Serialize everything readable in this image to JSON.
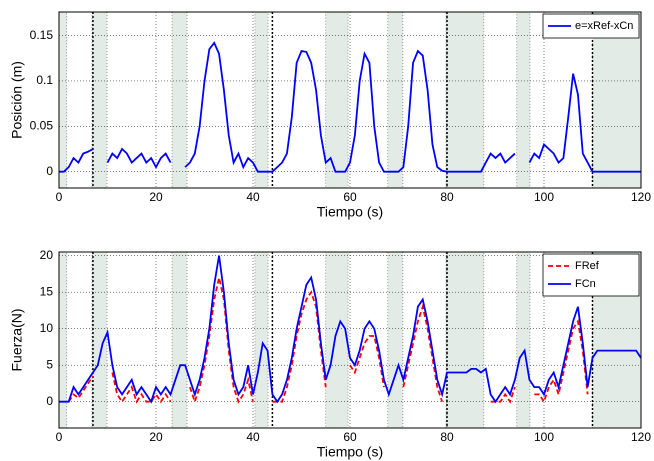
{
  "chart_data": [
    {
      "type": "line",
      "x_label": "Tiempo (s)",
      "y_label": "Posición (m)",
      "xlim": [
        0,
        120
      ],
      "xticks": [
        0,
        20,
        40,
        60,
        80,
        100,
        120
      ],
      "ylim": [
        -0.018,
        0.176
      ],
      "yticks": [
        0,
        0.05,
        0.1,
        0.15
      ],
      "grid": true,
      "legend": "upper right",
      "shaded_regions": [
        [
          0,
          1.6
        ],
        [
          6.8,
          9.9
        ],
        [
          23.3,
          26.4
        ],
        [
          40.4,
          43.1
        ],
        [
          55,
          59.6
        ],
        [
          67.8,
          70.9
        ],
        [
          79.8,
          87.6
        ],
        [
          94.4,
          97.1
        ],
        [
          110,
          120
        ]
      ],
      "vlines": [
        7,
        44,
        80,
        110
      ],
      "x": [
        0,
        1,
        2,
        3,
        4,
        5,
        6,
        7,
        8,
        9,
        10,
        11,
        12,
        13,
        14,
        15,
        16,
        17,
        18,
        19,
        20,
        21,
        22,
        23,
        24,
        25,
        26,
        27,
        28,
        29,
        30,
        31,
        32,
        33,
        34,
        35,
        36,
        37,
        38,
        39,
        40,
        41,
        42,
        43,
        44,
        45,
        46,
        47,
        48,
        49,
        50,
        51,
        52,
        53,
        54,
        55,
        56,
        57,
        58,
        59,
        60,
        61,
        62,
        63,
        64,
        65,
        66,
        67,
        68,
        69,
        70,
        71,
        72,
        73,
        74,
        75,
        76,
        77,
        78,
        79,
        80,
        81,
        82,
        83,
        84,
        85,
        86,
        87,
        88,
        89,
        90,
        91,
        92,
        93,
        94,
        95,
        96,
        97,
        98,
        99,
        100,
        101,
        102,
        103,
        104,
        105,
        106,
        107,
        108,
        109,
        110,
        111,
        112,
        113,
        114,
        115,
        116,
        117,
        118,
        119,
        120
      ],
      "series": [
        {
          "name": "e=xRef-xCn",
          "color": "#0000ff",
          "dash": false,
          "values": [
            0,
            0,
            0.005,
            0.015,
            0.01,
            0.02,
            0.022,
            0.025,
            null,
            null,
            0.01,
            0.02,
            0.015,
            0.025,
            0.02,
            0.01,
            0.015,
            0.02,
            0.01,
            0.015,
            0.005,
            0.015,
            0.02,
            0.01,
            null,
            null,
            0.005,
            0.01,
            0.02,
            0.05,
            0.1,
            0.135,
            0.142,
            0.13,
            0.09,
            0.04,
            0.01,
            0.02,
            0.005,
            0.015,
            0.01,
            0,
            0,
            0,
            0,
            0.005,
            0.01,
            0.02,
            0.06,
            0.12,
            0.133,
            0.132,
            0.12,
            0.09,
            0.04,
            0.01,
            0.015,
            0,
            0,
            0,
            0.01,
            0.04,
            0.1,
            0.13,
            0.12,
            0.05,
            0.01,
            0,
            0,
            0,
            0,
            0.005,
            0.05,
            0.12,
            0.133,
            0.128,
            0.09,
            0.03,
            0.005,
            0.001,
            0,
            0,
            0,
            0,
            0,
            0,
            0,
            0,
            0.01,
            0.02,
            0.015,
            0.02,
            0.01,
            0.015,
            0.02,
            null,
            null,
            0.01,
            0.02,
            0.015,
            0.03,
            0.025,
            0.02,
            0.01,
            0.015,
            0.06,
            0.108,
            0.085,
            0.02,
            0.01,
            0,
            0,
            0,
            0,
            0,
            0,
            0,
            0,
            0,
            0,
            0
          ]
        }
      ]
    },
    {
      "type": "line",
      "x_label": "Tiempo (s)",
      "y_label": "Fuerza(N)",
      "xlim": [
        0,
        120
      ],
      "xticks": [
        0,
        20,
        40,
        60,
        80,
        100,
        120
      ],
      "ylim": [
        -3.6,
        20.5
      ],
      "yticks": [
        0,
        5,
        10,
        15,
        20
      ],
      "grid": true,
      "legend": "upper right",
      "shaded_regions": [
        [
          0,
          1.6
        ],
        [
          6.8,
          9.9
        ],
        [
          23.3,
          26.4
        ],
        [
          40.4,
          43.1
        ],
        [
          55,
          59.6
        ],
        [
          67.8,
          70.9
        ],
        [
          79.8,
          87.6
        ],
        [
          94.4,
          97.1
        ],
        [
          110,
          120
        ]
      ],
      "vlines": [
        7,
        44,
        80,
        110
      ],
      "x": [
        0,
        1,
        2,
        3,
        4,
        5,
        6,
        7,
        8,
        9,
        10,
        11,
        12,
        13,
        14,
        15,
        16,
        17,
        18,
        19,
        20,
        21,
        22,
        23,
        24,
        25,
        26,
        27,
        28,
        29,
        30,
        31,
        32,
        33,
        34,
        35,
        36,
        37,
        38,
        39,
        40,
        41,
        42,
        43,
        44,
        45,
        46,
        47,
        48,
        49,
        50,
        51,
        52,
        53,
        54,
        55,
        56,
        57,
        58,
        59,
        60,
        61,
        62,
        63,
        64,
        65,
        66,
        67,
        68,
        69,
        70,
        71,
        72,
        73,
        74,
        75,
        76,
        77,
        78,
        79,
        80,
        81,
        82,
        83,
        84,
        85,
        86,
        87,
        88,
        89,
        90,
        91,
        92,
        93,
        94,
        95,
        96,
        97,
        98,
        99,
        100,
        101,
        102,
        103,
        104,
        105,
        106,
        107,
        108,
        109,
        110,
        111,
        112,
        113,
        114,
        115,
        116,
        117,
        118,
        119,
        120
      ],
      "series": [
        {
          "name": "FRef",
          "color": "#ff0000",
          "dash": true,
          "values": [
            null,
            null,
            0,
            1,
            0.5,
            1.5,
            2.5,
            3.5,
            null,
            null,
            null,
            4,
            1,
            0,
            1,
            2,
            0,
            1,
            0,
            0,
            1,
            0,
            1,
            0,
            null,
            null,
            null,
            2,
            0,
            2,
            5,
            9,
            14,
            17,
            14,
            7,
            2,
            0,
            1,
            3,
            0,
            null,
            null,
            null,
            0,
            0,
            0,
            2,
            5,
            9,
            12,
            14,
            15,
            13,
            7,
            2,
            null,
            null,
            null,
            null,
            5,
            4,
            6,
            8,
            9,
            9,
            6,
            2,
            null,
            null,
            null,
            2,
            5,
            8,
            11,
            13,
            10,
            6,
            2,
            0,
            null,
            null,
            null,
            null,
            null,
            null,
            null,
            null,
            null,
            0,
            0,
            0,
            1,
            0,
            2,
            null,
            null,
            null,
            1,
            1,
            0,
            2,
            3,
            1,
            4,
            7,
            10,
            11,
            7,
            1,
            null,
            null,
            null,
            null,
            null,
            null,
            null,
            null,
            null,
            null,
            null
          ]
        },
        {
          "name": "FCn",
          "color": "#0000ff",
          "dash": false,
          "values": [
            0,
            0,
            0,
            2,
            1,
            2,
            3,
            4,
            5,
            8,
            9.5,
            5,
            2,
            1,
            2,
            3,
            1,
            2,
            1,
            0,
            2,
            1,
            2,
            1,
            3,
            5,
            5,
            3,
            1,
            3,
            6,
            10,
            16,
            20,
            15,
            8,
            3,
            1,
            2,
            5,
            1,
            4,
            8,
            7,
            1,
            0,
            1,
            3,
            6,
            10,
            13,
            16,
            17,
            14,
            8,
            3,
            5,
            9,
            11,
            10,
            6,
            5,
            7,
            10,
            11,
            10,
            7,
            3,
            1,
            3,
            5,
            3,
            6,
            9,
            13,
            14,
            11,
            7,
            3,
            1,
            4,
            4,
            4,
            4,
            4,
            4.5,
            4.5,
            4,
            4.5,
            1,
            0,
            1,
            2,
            1,
            3,
            6,
            7,
            3,
            2,
            2,
            1,
            3,
            4,
            2,
            5,
            8,
            11,
            13,
            8,
            2,
            6,
            7,
            7,
            7,
            7,
            7,
            7,
            7,
            7,
            7,
            6
          ]
        }
      ]
    }
  ]
}
